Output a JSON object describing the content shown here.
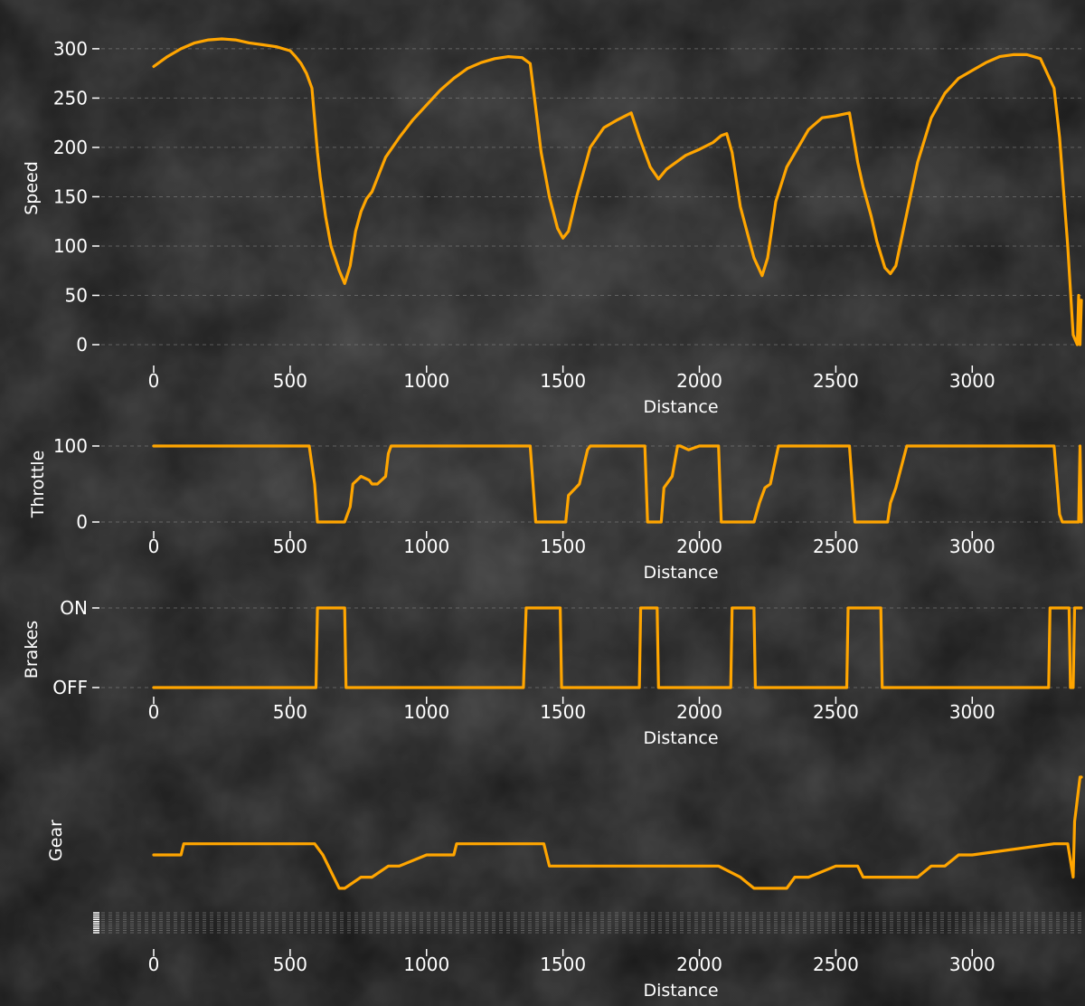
{
  "accent_color": "#FFA500",
  "background_color": "#1b1b1b",
  "chart_data": [
    {
      "type": "line",
      "id": "speed",
      "xlabel": "Distance",
      "ylabel": "Speed",
      "xlim": [
        0,
        3400
      ],
      "ylim": [
        0,
        310
      ],
      "xticks": [
        0,
        500,
        1000,
        1500,
        2000,
        2500,
        3000
      ],
      "yticks": [
        {
          "value": 0,
          "label": "0"
        },
        {
          "value": 50,
          "label": "50"
        },
        {
          "value": 100,
          "label": "100"
        },
        {
          "value": 150,
          "label": "150"
        },
        {
          "value": 200,
          "label": "200"
        },
        {
          "value": 250,
          "label": "250"
        },
        {
          "value": 300,
          "label": "300"
        }
      ],
      "grid": "horizontal",
      "x": [
        0,
        50,
        100,
        150,
        200,
        250,
        300,
        350,
        400,
        450,
        500,
        520,
        540,
        560,
        580,
        600,
        610,
        620,
        630,
        650,
        680,
        700,
        720,
        740,
        760,
        780,
        800,
        850,
        900,
        950,
        1000,
        1050,
        1100,
        1150,
        1200,
        1250,
        1300,
        1350,
        1380,
        1400,
        1420,
        1450,
        1480,
        1500,
        1520,
        1550,
        1600,
        1650,
        1700,
        1750,
        1780,
        1820,
        1850,
        1880,
        1920,
        1950,
        2000,
        2050,
        2080,
        2100,
        2120,
        2150,
        2200,
        2230,
        2250,
        2280,
        2320,
        2400,
        2450,
        2500,
        2550,
        2580,
        2600,
        2630,
        2650,
        2680,
        2700,
        2720,
        2750,
        2800,
        2850,
        2900,
        2950,
        3000,
        3050,
        3100,
        3150,
        3200,
        3250,
        3300,
        3320,
        3350,
        3370,
        3385,
        3390,
        3395,
        3400
      ],
      "y": [
        282,
        292,
        300,
        306,
        309,
        310,
        309,
        306,
        304,
        302,
        298,
        292,
        285,
        275,
        260,
        195,
        170,
        150,
        130,
        100,
        75,
        62,
        80,
        115,
        135,
        148,
        155,
        190,
        210,
        228,
        243,
        258,
        270,
        280,
        286,
        290,
        292,
        291,
        285,
        240,
        195,
        150,
        118,
        108,
        115,
        150,
        200,
        220,
        228,
        235,
        210,
        180,
        168,
        178,
        186,
        192,
        198,
        205,
        212,
        214,
        195,
        140,
        88,
        70,
        88,
        145,
        180,
        218,
        230,
        232,
        235,
        185,
        160,
        130,
        105,
        78,
        72,
        80,
        120,
        185,
        230,
        255,
        270,
        278,
        286,
        292,
        294,
        294,
        290,
        260,
        210,
        100,
        10,
        0,
        50,
        0,
        45
      ]
    },
    {
      "type": "line",
      "id": "throttle",
      "xlabel": "Distance",
      "ylabel": "Throttle",
      "xlim": [
        0,
        3400
      ],
      "ylim": [
        0,
        100
      ],
      "xticks": [
        0,
        500,
        1000,
        1500,
        2000,
        2500,
        3000
      ],
      "yticks": [
        {
          "value": 0,
          "label": "0"
        },
        {
          "value": 100,
          "label": "100"
        }
      ],
      "grid": "horizontal",
      "x": [
        0,
        570,
        590,
        600,
        700,
        720,
        730,
        760,
        790,
        800,
        820,
        850,
        860,
        870,
        880,
        900,
        1380,
        1390,
        1400,
        1510,
        1520,
        1560,
        1590,
        1600,
        1780,
        1800,
        1810,
        1820,
        1860,
        1870,
        1900,
        1920,
        1930,
        1960,
        2000,
        2050,
        2070,
        2080,
        2130,
        2200,
        2220,
        2240,
        2260,
        2290,
        2550,
        2560,
        2570,
        2690,
        2700,
        2720,
        2760,
        3300,
        3320,
        3330,
        3350,
        3390,
        3395,
        3400
      ],
      "y": [
        100,
        100,
        50,
        0,
        0,
        20,
        50,
        60,
        55,
        50,
        50,
        60,
        90,
        100,
        100,
        100,
        100,
        50,
        0,
        0,
        35,
        50,
        95,
        100,
        100,
        100,
        0,
        0,
        0,
        45,
        60,
        100,
        100,
        95,
        100,
        100,
        100,
        0,
        0,
        0,
        25,
        45,
        50,
        100,
        100,
        50,
        0,
        0,
        25,
        45,
        100,
        100,
        10,
        0,
        0,
        0,
        100,
        0
      ]
    },
    {
      "type": "line",
      "id": "brakes",
      "xlabel": "Distance",
      "ylabel": "Brakes",
      "xlim": [
        0,
        3400
      ],
      "ylim": [
        0,
        1
      ],
      "xticks": [
        0,
        500,
        1000,
        1500,
        2000,
        2500,
        3000
      ],
      "yticks": [
        {
          "value": 0,
          "label": "OFF"
        },
        {
          "value": 1,
          "label": "ON"
        }
      ],
      "grid": "horizontal",
      "x": [
        0,
        595,
        600,
        700,
        705,
        1355,
        1365,
        1490,
        1495,
        1780,
        1785,
        1845,
        1850,
        2115,
        2120,
        2200,
        2205,
        2540,
        2545,
        2665,
        2670,
        3280,
        3285,
        3355,
        3360,
        3370,
        3375,
        3400
      ],
      "y": [
        0,
        0,
        1,
        1,
        0,
        0,
        1,
        1,
        0,
        0,
        1,
        1,
        0,
        0,
        1,
        1,
        0,
        0,
        1,
        1,
        0,
        0,
        1,
        1,
        0,
        0,
        1,
        1
      ]
    },
    {
      "type": "line",
      "id": "gear",
      "xlabel": "Distance",
      "ylabel": "Gear",
      "xlim": [
        0,
        3400
      ],
      "ylim": [
        0,
        14
      ],
      "xticks": [
        0,
        500,
        1000,
        1500,
        2000,
        2500,
        3000
      ],
      "yticks": [],
      "grid": "horizontal",
      "x": [
        0,
        100,
        110,
        590,
        620,
        680,
        700,
        760,
        800,
        860,
        900,
        1000,
        1100,
        1110,
        1430,
        1450,
        1500,
        1700,
        1720,
        2050,
        2070,
        2150,
        2200,
        2320,
        2350,
        2400,
        2500,
        2520,
        2580,
        2600,
        2690,
        2720,
        2800,
        2850,
        2900,
        2950,
        3000,
        3300,
        3350,
        3370,
        3375,
        3380,
        3385,
        3390,
        3395,
        3400
      ],
      "y": [
        7,
        7,
        8,
        8,
        7,
        4,
        4,
        5,
        5,
        6,
        6,
        7,
        7,
        8,
        8,
        6,
        6,
        6,
        6,
        6,
        6,
        5,
        4,
        4,
        5,
        5,
        6,
        6,
        6,
        5,
        5,
        5,
        5,
        6,
        6,
        7,
        7,
        8,
        8,
        5,
        10,
        11,
        12,
        13,
        14,
        14
      ]
    }
  ]
}
